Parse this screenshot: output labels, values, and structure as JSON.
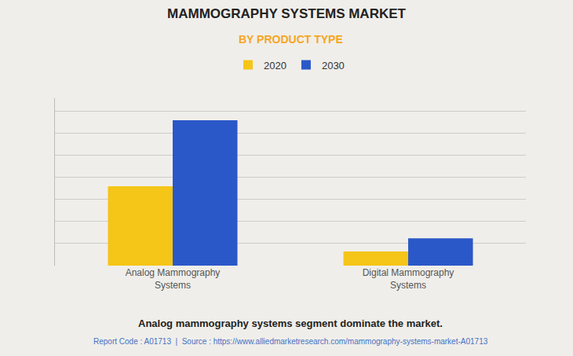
{
  "chart_data": {
    "type": "bar",
    "title": "MAMMOGRAPHY SYSTEMS MARKET",
    "subtitle": "BY PRODUCT TYPE",
    "categories": [
      "Analog Mammography\nSystems",
      "Digital Mammography\nSystems"
    ],
    "series": [
      {
        "name": "2020",
        "color": "#F5C518",
        "values": [
          1.8,
          0.32
        ]
      },
      {
        "name": "2030",
        "color": "#2B58C8",
        "values": [
          3.3,
          0.62
        ]
      }
    ],
    "ylim": [
      0,
      3.8
    ],
    "yticks": [
      0,
      0.5,
      1,
      1.5,
      2,
      2.5,
      3,
      3.5
    ],
    "grid": true,
    "legend": "top",
    "tick_labels": "x",
    "annotations": [
      "Analog mammography systems segment dominate the market.",
      "Report Code : A01713  |  Source : https://www.alliedmarketresearch.com/mammography-systems-market-A01713"
    ]
  }
}
